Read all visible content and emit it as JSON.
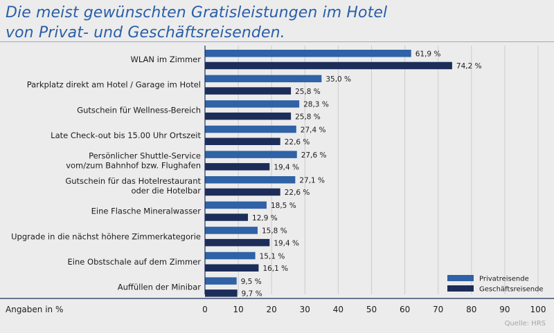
{
  "chart_data": {
    "type": "bar",
    "orientation": "horizontal",
    "title_lines": [
      "Die meist gewünschten Gratisleistungen im Hotel",
      "von Privat- und Geschäftsreisenden."
    ],
    "categories": [
      [
        "WLAN im Zimmer"
      ],
      [
        "Parkplatz direkt am Hotel / Garage im Hotel"
      ],
      [
        "Gutschein für Wellness-Bereich"
      ],
      [
        "Late Check-out bis 15.00 Uhr Ortszeit"
      ],
      [
        "Persönlicher Shuttle-Service",
        "vom/zum Bahnhof bzw. Flughafen"
      ],
      [
        "Gutschein für das Hotelrestaurant",
        "oder die Hotelbar"
      ],
      [
        "Eine Flasche Mineralwasser"
      ],
      [
        "Upgrade in die nächst höhere Zimmerkategorie"
      ],
      [
        "Eine Obstschale auf dem Zimmer"
      ],
      [
        "Auffüllen der Minibar"
      ]
    ],
    "series": [
      {
        "name": "Privatreisende",
        "color": "#2f62a6",
        "values": [
          61.9,
          35.0,
          28.3,
          27.4,
          27.6,
          27.1,
          18.5,
          15.8,
          15.1,
          9.5
        ],
        "labels": [
          "61,9 %",
          "35,0 %",
          "28,3 %",
          "27,4 %",
          "27,6 %",
          "27,1 %",
          "18,5 %",
          "15,8 %",
          "15,1 %",
          "9,5 %"
        ]
      },
      {
        "name": "Geschäftsreisende",
        "color": "#1c2d59",
        "values": [
          74.2,
          25.8,
          25.8,
          22.6,
          19.4,
          22.6,
          12.9,
          19.4,
          16.1,
          9.7
        ],
        "labels": [
          "74,2 %",
          "25,8 %",
          "25,8 %",
          "22,6 %",
          "19,4 %",
          "22,6 %",
          "12,9 %",
          "19,4 %",
          "16,1 %",
          "9,7 %"
        ]
      }
    ],
    "xlim": [
      0,
      100
    ],
    "xticks": [
      0,
      10,
      20,
      30,
      40,
      50,
      60,
      70,
      80,
      90,
      100
    ],
    "xunit_label": "Angaben in %",
    "grid": "vertical",
    "legend_position": "bottom-right",
    "source": "Quelle: HRS"
  }
}
